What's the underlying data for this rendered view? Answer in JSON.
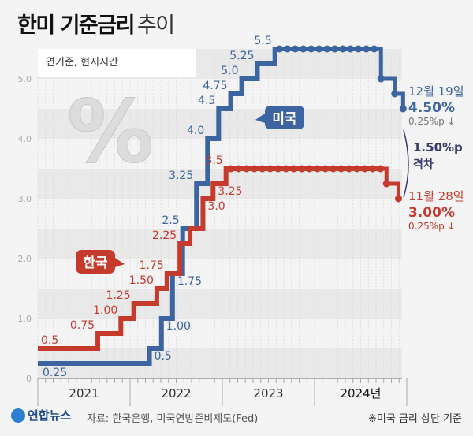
{
  "title": {
    "bold": "한미 기준금리",
    "light": "추이"
  },
  "note": "연기준, 현지시간",
  "footer": {
    "logo": "연합뉴스",
    "source": "자료: 한국은행, 미국연방준비제도(Fed)",
    "remark": "※미국 금리 상단 기준"
  },
  "chart_data": {
    "type": "line",
    "step": true,
    "xlim": [
      2021,
      2025
    ],
    "ylim": [
      0,
      5.5
    ],
    "yticks": [
      "0",
      "1.0",
      "2.0",
      "3.0",
      "4.0",
      "5.0"
    ],
    "xticks": [
      "2021",
      "2022",
      "2023",
      "2024년"
    ],
    "grid": "alternating horizontal bands",
    "colors": {
      "us": "#3b64a0",
      "kr": "#c63a2e",
      "gap": "#3b3a6a"
    },
    "series": [
      {
        "name": "미국",
        "key": "us",
        "points": [
          [
            2021.0,
            0.25
          ],
          [
            2022.21,
            0.5
          ],
          [
            2022.34,
            1.0
          ],
          [
            2022.46,
            1.75
          ],
          [
            2022.57,
            2.5
          ],
          [
            2022.72,
            3.25
          ],
          [
            2022.84,
            4.0
          ],
          [
            2022.96,
            4.5
          ],
          [
            2023.09,
            4.75
          ],
          [
            2023.21,
            5.0
          ],
          [
            2023.38,
            5.25
          ],
          [
            2023.57,
            5.5
          ],
          [
            2024.72,
            5.0
          ],
          [
            2024.87,
            4.75
          ],
          [
            2024.96,
            4.5
          ]
        ],
        "labels": [
          "0.25",
          "0.5",
          "1.00",
          "1.75",
          "2.5",
          "3.25",
          "4.0",
          "4.5",
          "4.75",
          "5.0",
          "5.25",
          "5.5",
          "",
          "",
          ""
        ]
      },
      {
        "name": "한국",
        "key": "kr",
        "points": [
          [
            2021.0,
            0.5
          ],
          [
            2021.65,
            0.75
          ],
          [
            2021.9,
            1.0
          ],
          [
            2022.04,
            1.25
          ],
          [
            2022.29,
            1.5
          ],
          [
            2022.4,
            1.75
          ],
          [
            2022.54,
            2.25
          ],
          [
            2022.65,
            2.5
          ],
          [
            2022.79,
            3.0
          ],
          [
            2022.9,
            3.25
          ],
          [
            2023.04,
            3.5
          ],
          [
            2024.78,
            3.25
          ],
          [
            2024.91,
            3.0
          ]
        ],
        "labels": [
          "0.5",
          "0.75",
          "1.00",
          "1.25",
          "1.50",
          "1.75",
          "2.25",
          "",
          "3.0",
          "3.25",
          "3.5",
          "",
          ""
        ]
      }
    ],
    "annotations": {
      "us": {
        "date": "12월 19일",
        "value": "4.50%",
        "change": "0.25%p ↓"
      },
      "kr": {
        "date": "11월 28일",
        "value": "3.00%",
        "change": "0.25%p ↓"
      },
      "gap": {
        "value": "1.50%p",
        "label": "격차"
      }
    }
  }
}
